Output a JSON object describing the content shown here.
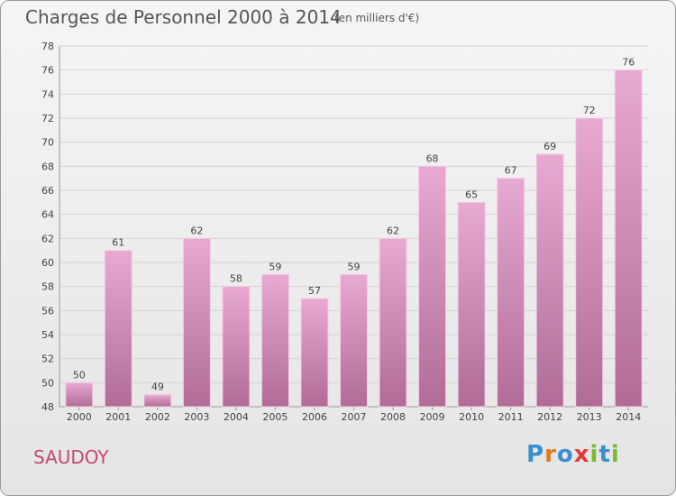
{
  "header": {
    "title": "Charges de Personnel 2000 à 2014",
    "subtitle": "(en milliers d'€)"
  },
  "footer": {
    "commune": "SAUDOY",
    "brand": "Proxiti",
    "brand_colors": [
      "#3a8fd0",
      "#e07b1e",
      "#3a8fd0",
      "#e23b3b",
      "#7cb832",
      "#3a8fd0",
      "#7cb832"
    ]
  },
  "chart_data": {
    "type": "bar",
    "title": "Charges de Personnel 2000 à 2014",
    "subtitle": "(en milliers d'€)",
    "xlabel": "",
    "ylabel": "",
    "categories": [
      "2000",
      "2001",
      "2002",
      "2003",
      "2004",
      "2005",
      "2006",
      "2007",
      "2008",
      "2009",
      "2010",
      "2011",
      "2012",
      "2013",
      "2014"
    ],
    "values": [
      50,
      61,
      49,
      62,
      58,
      59,
      57,
      59,
      62,
      68,
      65,
      67,
      69,
      72,
      76
    ],
    "ylim": [
      48,
      78
    ],
    "yticks": [
      48,
      50,
      52,
      54,
      56,
      58,
      60,
      62,
      64,
      66,
      68,
      70,
      72,
      74,
      76,
      78
    ],
    "grid": true,
    "data_labels": true,
    "colors": {
      "bar_top": "#e8a9d2",
      "bar_bottom": "#b06c96",
      "bar_edge": "#f4cde6",
      "grid": "#d2d2d2",
      "text": "#444444"
    }
  }
}
